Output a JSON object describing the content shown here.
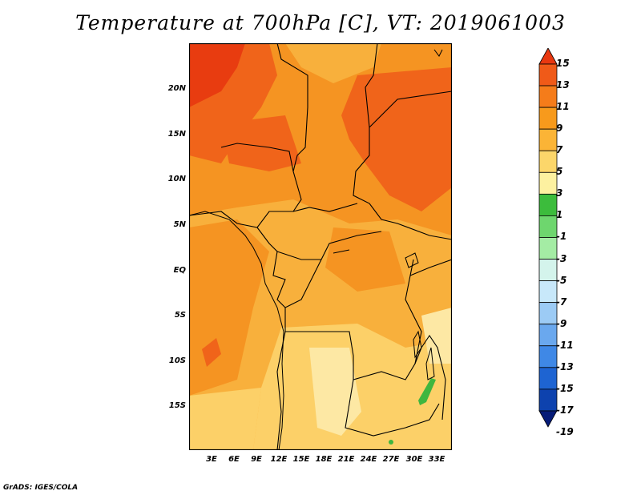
{
  "title": "Temperature at 700hPa [C], VT: 2019061003",
  "credit": "GrADS: IGES/COLA",
  "y_ticks": [
    "20N",
    "15N",
    "10N",
    "5N",
    "EQ",
    "5S",
    "10S",
    "15S"
  ],
  "x_ticks": [
    "3E",
    "6E",
    "9E",
    "12E",
    "15E",
    "18E",
    "21E",
    "24E",
    "27E",
    "30E",
    "33E"
  ],
  "colorbar": {
    "labels": [
      "15",
      "13",
      "11",
      "9",
      "7",
      "5",
      "3",
      "1",
      "-1",
      "-3",
      "-5",
      "-7",
      "-9",
      "-11",
      "-13",
      "-15",
      "-17",
      "-19"
    ],
    "colors": [
      "#e83810",
      "#f05a18",
      "#f57c1a",
      "#f79a1c",
      "#fbb436",
      "#fcd66a",
      "#fdf1a0",
      "#3cbc3c",
      "#6ed66e",
      "#a4eca4",
      "#d4f4ec",
      "#c8e8fa",
      "#9ccbf5",
      "#6aa8ee",
      "#3f88e6",
      "#1e64d2",
      "#0d42ae",
      "#061c78"
    ]
  },
  "map_regions": {
    "palette": {
      "warmest": "#e83c10",
      "very_warm": "#f0641a",
      "warm": "#f59422",
      "mild": "#f8b03c",
      "cool": "#fcd068",
      "coolest": "#fde8a4",
      "cold_band": "#3fb63f"
    }
  }
}
